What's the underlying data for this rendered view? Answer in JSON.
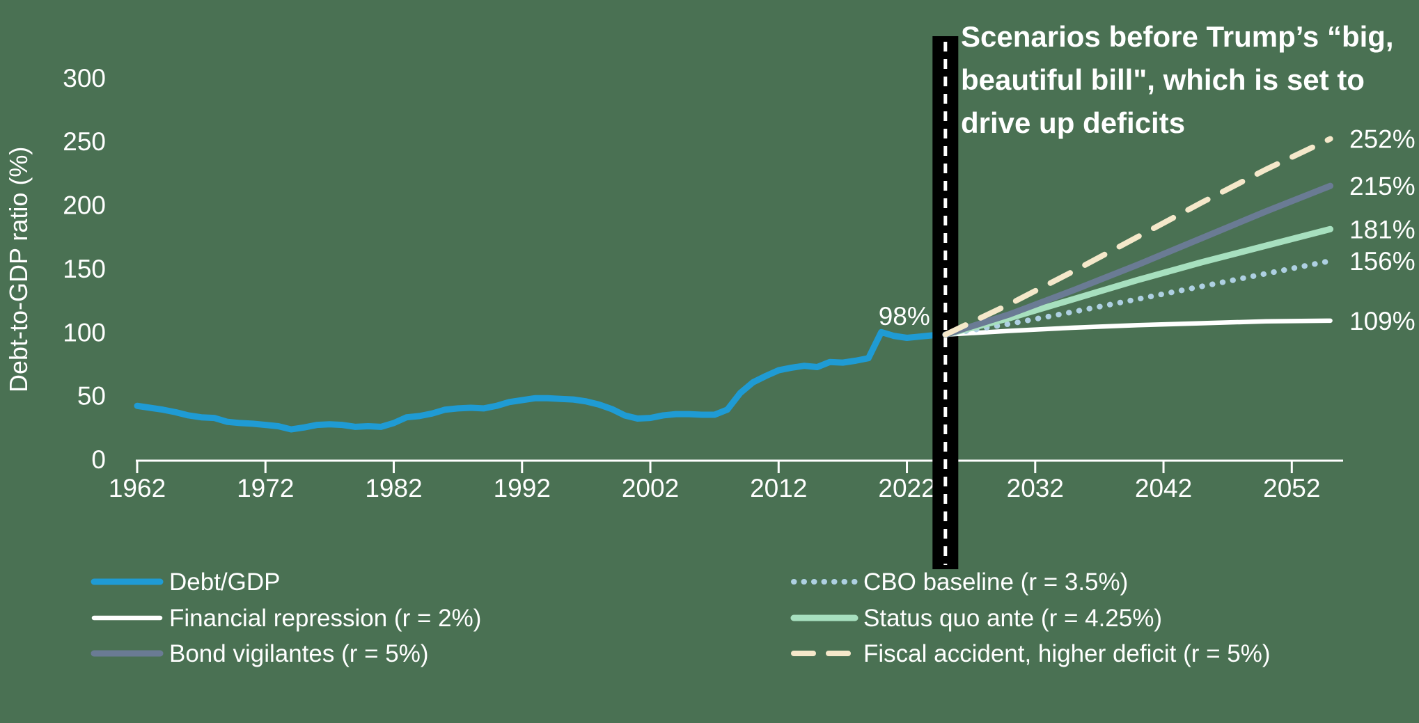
{
  "colors": {
    "background": "#4a7153",
    "axis": "#ffffff",
    "text": "#ffffff",
    "marker_band": "#000000",
    "marker_band_dash": "#ffffff"
  },
  "y_axis": {
    "title": "Debt-to-GDP ratio (%)",
    "ticks": [
      0,
      50,
      100,
      150,
      200,
      250,
      300
    ],
    "range": [
      0,
      330
    ]
  },
  "x_axis": {
    "ticks": [
      1962,
      1972,
      1982,
      1992,
      2002,
      2012,
      2022,
      2032,
      2042,
      2052
    ],
    "range": [
      1962,
      2056
    ]
  },
  "annotation": {
    "lines": [
      "Scenarios before Trump’s “big,",
      "beautiful bill\", which is set to",
      "drive up deficits"
    ],
    "marker_year": 2025
  },
  "junction_label": "98%",
  "legend": {
    "left": [
      "Debt/GDP",
      "Financial repression (r = 2%)",
      "Bond vigilantes (r = 5%)"
    ],
    "right": [
      "CBO baseline (r = 3.5%)",
      "Status quo ante (r = 4.25%)",
      "Fiscal accident, higher deficit (r = 5%)"
    ]
  },
  "chart_data": {
    "type": "line",
    "title": "Scenarios before Trump’s “big, beautiful bill\", which is set to drive up deficits",
    "xlabel": "",
    "ylabel": "Debt-to-GDP ratio (%)",
    "ylim": [
      0,
      330
    ],
    "xlim": [
      1962,
      2056
    ],
    "grid": false,
    "legend_position": "bottom",
    "scenario_start_note": "98% at 2025 junction marked by black dashed vertical band",
    "series": [
      {
        "name": "Debt/GDP",
        "color": "#1f9bd4",
        "style": "solid",
        "width": 9,
        "end_label": null,
        "x": [
          1962,
          1963,
          1964,
          1965,
          1966,
          1967,
          1968,
          1969,
          1970,
          1971,
          1972,
          1973,
          1974,
          1975,
          1976,
          1977,
          1978,
          1979,
          1980,
          1981,
          1982,
          1983,
          1984,
          1985,
          1986,
          1987,
          1988,
          1989,
          1990,
          1991,
          1992,
          1993,
          1994,
          1995,
          1996,
          1997,
          1998,
          1999,
          2000,
          2001,
          2002,
          2003,
          2004,
          2005,
          2006,
          2007,
          2008,
          2009,
          2010,
          2011,
          2012,
          2013,
          2014,
          2015,
          2016,
          2017,
          2018,
          2019,
          2020,
          2021,
          2022,
          2023,
          2024,
          2025
        ],
        "values": [
          42,
          40.5,
          39,
          37,
          34.5,
          33,
          32.5,
          29.5,
          28.5,
          28,
          27,
          26,
          23.5,
          25,
          27,
          27.5,
          27,
          25.5,
          26,
          25.5,
          28.5,
          33,
          34,
          36,
          39,
          40,
          40.5,
          40,
          42,
          45,
          46.5,
          48,
          48,
          47.5,
          47,
          45.5,
          43,
          39.5,
          34.5,
          32,
          32.5,
          34.5,
          35.5,
          35.5,
          35,
          35,
          39,
          52,
          60.5,
          65.5,
          70,
          72,
          73.5,
          72.5,
          76.5,
          76,
          77.5,
          79.5,
          100,
          97,
          95.5,
          96.5,
          97.5,
          98
        ]
      },
      {
        "name": "Financial repression (r = 2%)",
        "color": "#ffffff",
        "style": "solid",
        "width": 6.5,
        "end_label": "109%",
        "x": [
          2025,
          2030,
          2035,
          2040,
          2045,
          2050,
          2055
        ],
        "values": [
          98,
          101,
          103.5,
          105.5,
          107,
          108.5,
          109
        ]
      },
      {
        "name": "CBO baseline (r = 3.5%)",
        "color": "#aed0e2",
        "style": "dotted",
        "width": 8,
        "end_label": "156%",
        "x": [
          2025,
          2030,
          2035,
          2040,
          2045,
          2050,
          2055
        ],
        "values": [
          98,
          106.5,
          116,
          126,
          136,
          146,
          156
        ]
      },
      {
        "name": "Status quo ante (r = 4.25%)",
        "color": "#a7e0bf",
        "style": "solid",
        "width": 9,
        "end_label": "181%",
        "x": [
          2025,
          2030,
          2035,
          2040,
          2045,
          2050,
          2055
        ],
        "values": [
          98,
          111,
          126,
          141,
          155,
          168,
          181
        ]
      },
      {
        "name": "Bond vigilantes (r = 5%)",
        "color": "#6a7b94",
        "style": "solid",
        "width": 9,
        "end_label": "215%",
        "x": [
          2025,
          2030,
          2035,
          2040,
          2045,
          2050,
          2055
        ],
        "values": [
          98,
          114,
          133,
          153,
          174,
          195,
          215
        ]
      },
      {
        "name": "Fiscal accident, higher deficit (r = 5%)",
        "color": "#f5e8ca",
        "style": "dashed",
        "width": 8,
        "end_label": "252%",
        "x": [
          2025,
          2030,
          2035,
          2040,
          2045,
          2050,
          2055
        ],
        "values": [
          98,
          122,
          148,
          175,
          202,
          228,
          252
        ]
      }
    ]
  }
}
